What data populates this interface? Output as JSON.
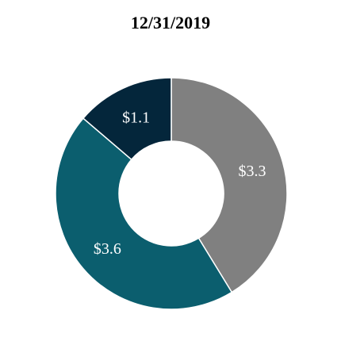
{
  "chart_data": {
    "type": "pie",
    "title": "12/31/2019",
    "donut": true,
    "start": "12 o'clock, clockwise",
    "slices": [
      {
        "label": "$3.3",
        "value": 3.3,
        "color": "#808080"
      },
      {
        "label": "$3.6",
        "value": 3.6,
        "color": "#0b5e6e"
      },
      {
        "label": "$1.1",
        "value": 1.1,
        "color": "#04263b"
      }
    ]
  }
}
